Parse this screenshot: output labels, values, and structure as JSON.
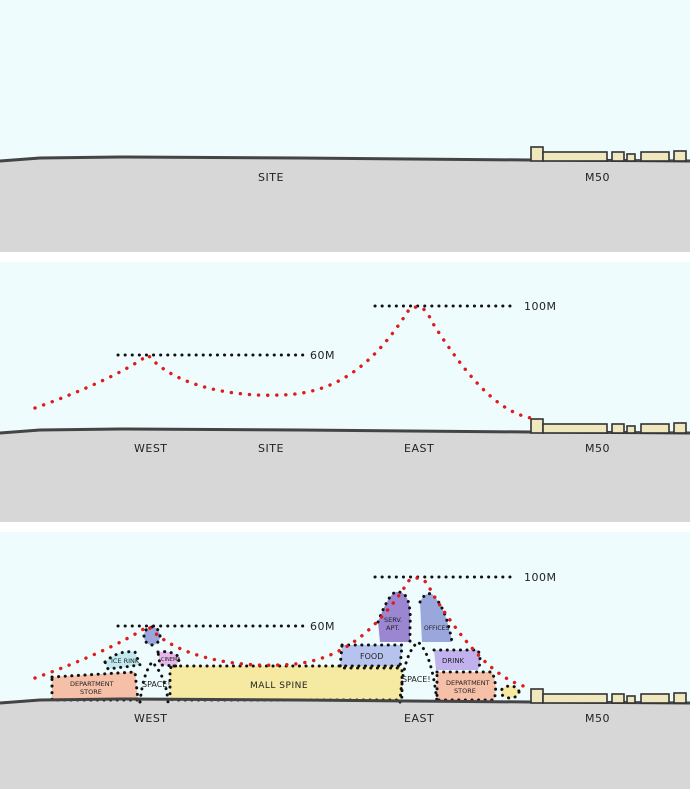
{
  "colors": {
    "sky": "#eefcfd",
    "ground": "#d7d7d7",
    "ground_line": "#444444",
    "building": "#efe7bd",
    "red_dots": "#e01b1b",
    "black_dots": "#111111",
    "mall_spine": "#f6eaa2",
    "department_store": "#f6bfa8",
    "ice_rink": "#bfe9ee",
    "cinema": "#e7b6ea",
    "food": "#b7c3ef",
    "drink": "#c1b1ec",
    "serviced_apartments": "#9b86d2",
    "offices": "#9aa7dd"
  },
  "panel1": {
    "site_label": "SITE",
    "m50_label": "M50"
  },
  "panel2": {
    "height_60": "60M",
    "height_100": "100M",
    "west_label": "WEST",
    "site_label": "SITE",
    "east_label": "EAST",
    "m50_label": "M50"
  },
  "panel3": {
    "height_60": "60M",
    "height_100": "100M",
    "west_label": "WEST",
    "east_label": "EAST",
    "m50_label": "M50",
    "zones": {
      "mall_spine": "MALL SPINE",
      "dept_store_west_1": "DEPARTMENT",
      "dept_store_west_2": "STORE",
      "dept_store_east_1": "DEPARTMENT",
      "dept_store_east_2": "STORE",
      "space_west": "SPACE!",
      "space_east": "SPACE!",
      "ice_rink": "ICE RINK",
      "cinema": "CINEMA",
      "food": "FOOD",
      "drink": "DRINK",
      "serv_apt_1": "SERV.",
      "serv_apt_2": "APT.",
      "offices": "OFFICES"
    }
  }
}
